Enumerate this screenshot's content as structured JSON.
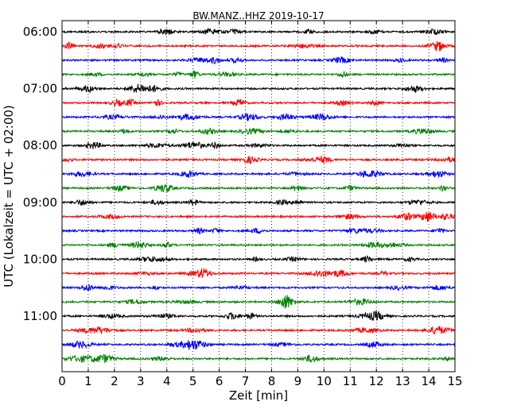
{
  "chart_data": {
    "type": "line",
    "title": "BW.MANZ..HHZ 2019-10-17",
    "xlabel": "Zeit  [min]",
    "ylabel": "UTC (Lokalzeit = UTC + 02:00)",
    "xlim": [
      0,
      15
    ],
    "x_ticks": [
      "0",
      "1",
      "2",
      "3",
      "4",
      "5",
      "6",
      "7",
      "8",
      "9",
      "10",
      "11",
      "12",
      "13",
      "14",
      "15"
    ],
    "y_ticks": [
      "06:00",
      "07:00",
      "08:00",
      "09:00",
      "10:00",
      "11:00"
    ],
    "trace_count": 24,
    "trace_interval_minutes": 15,
    "first_trace": "06:00",
    "vertical_grid": "dotted",
    "series_colors": [
      "#000000",
      "#ff0000",
      "#0000ff",
      "#008000"
    ]
  }
}
